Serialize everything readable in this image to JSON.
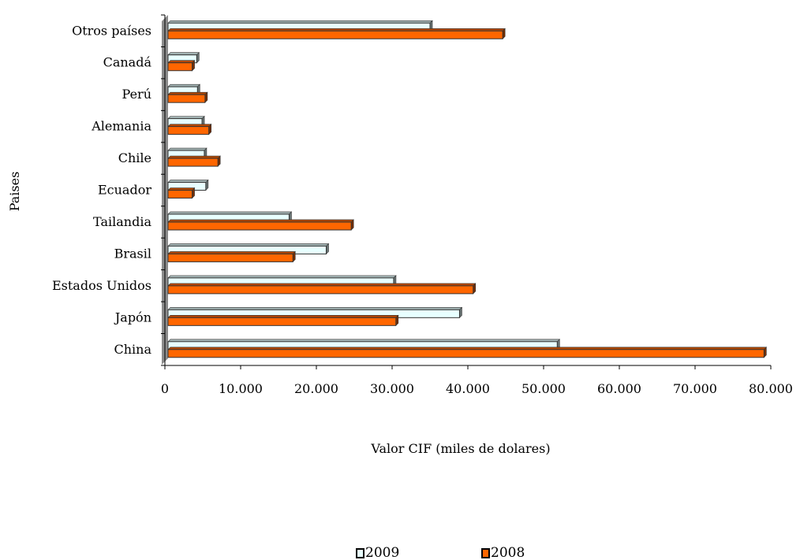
{
  "chart_data": {
    "type": "bar",
    "orientation": "horizontal",
    "title": "",
    "xlabel": "Valor CIF (miles de dolares)",
    "ylabel": "Paises",
    "categories": [
      "China",
      "Japón",
      "Estados Unidos",
      "Brasil",
      "Tailandia",
      "Ecuador",
      "Chile",
      "Alemania",
      "Perú",
      "Canadá",
      "Otros países"
    ],
    "series": [
      {
        "name": "2009",
        "values": [
          51800,
          38900,
          30200,
          21300,
          16400,
          5400,
          5200,
          4900,
          4300,
          4200,
          35000
        ],
        "color": "#e8ffff"
      },
      {
        "name": "2008",
        "values": [
          79100,
          30500,
          40700,
          16900,
          24600,
          3600,
          7000,
          5800,
          5300,
          3600,
          44600
        ],
        "color": "#ff6600"
      }
    ],
    "xlim": [
      0,
      80000
    ],
    "xticks": [
      "0",
      "10.000",
      "20.000",
      "30.000",
      "40.000",
      "50.000",
      "60.000",
      "70.000",
      "80.000"
    ],
    "grid": false,
    "legend_position": "bottom"
  }
}
